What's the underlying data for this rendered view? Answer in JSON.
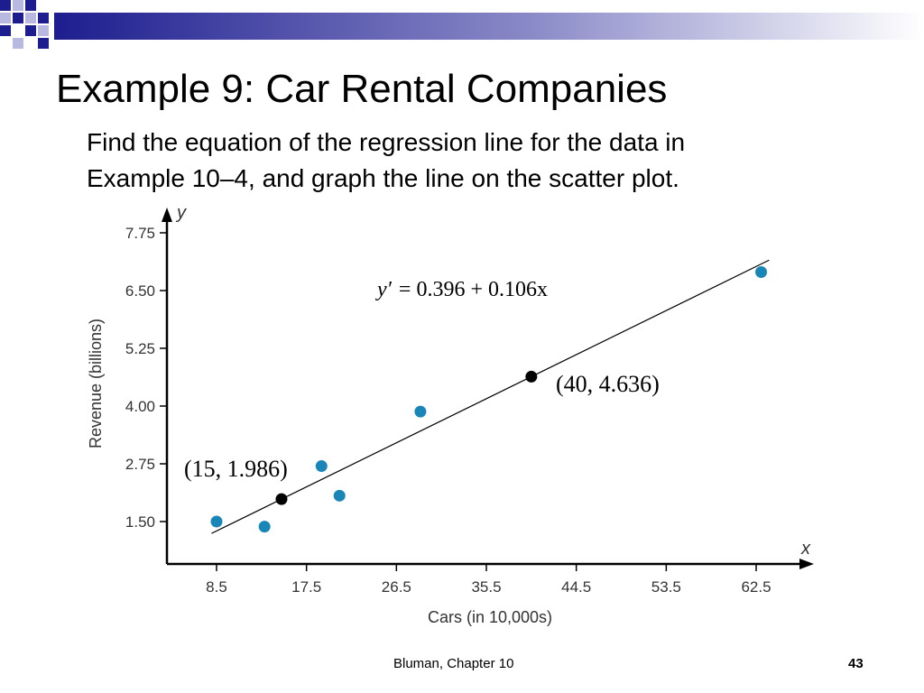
{
  "slide": {
    "title": "Example 9: Car Rental Companies",
    "intro_lines": [
      "Find the equation of the regression line for the data in",
      "Example 10–4, and graph the line on the scatter plot."
    ],
    "footer": "Bluman, Chapter 10",
    "page_number": "43",
    "colors": {
      "accent_dark": "#1d1d8f",
      "accent_light": "#b8b8e0"
    }
  },
  "chart_data": {
    "type": "scatter",
    "xlabel": "Cars (in 10,000s)",
    "ylabel": "Revenue (billions)",
    "x_axis_letter": "x",
    "y_axis_letter": "y",
    "xlim": [
      7.5,
      64.5
    ],
    "ylim": [
      1.2,
      8.0
    ],
    "x_ticks": [
      "8.5",
      "17.5",
      "26.5",
      "35.5",
      "44.5",
      "53.5",
      "62.5"
    ],
    "y_ticks": [
      "1.50",
      "2.75",
      "4.00",
      "5.25",
      "6.50",
      "7.75"
    ],
    "points": [
      {
        "x": 8.5,
        "y": 1.5
      },
      {
        "x": 13.3,
        "y": 1.39
      },
      {
        "x": 19.0,
        "y": 2.7
      },
      {
        "x": 20.8,
        "y": 2.06
      },
      {
        "x": 28.9,
        "y": 3.88
      },
      {
        "x": 63.0,
        "y": 6.9
      }
    ],
    "point_color": "#1a86b8",
    "regression": {
      "equation_lhs": "y′",
      "equation_rhs": "= 0.396 + 0.106x",
      "intercept": 0.396,
      "slope": 0.106,
      "x_start": 8.0,
      "x_end": 63.8
    },
    "highlight_points": [
      {
        "x": 15,
        "y": 1.986,
        "label": "(15, 1.986)"
      },
      {
        "x": 40,
        "y": 4.636,
        "label": "(40, 4.636)"
      }
    ],
    "grid": false,
    "legend": "none"
  }
}
